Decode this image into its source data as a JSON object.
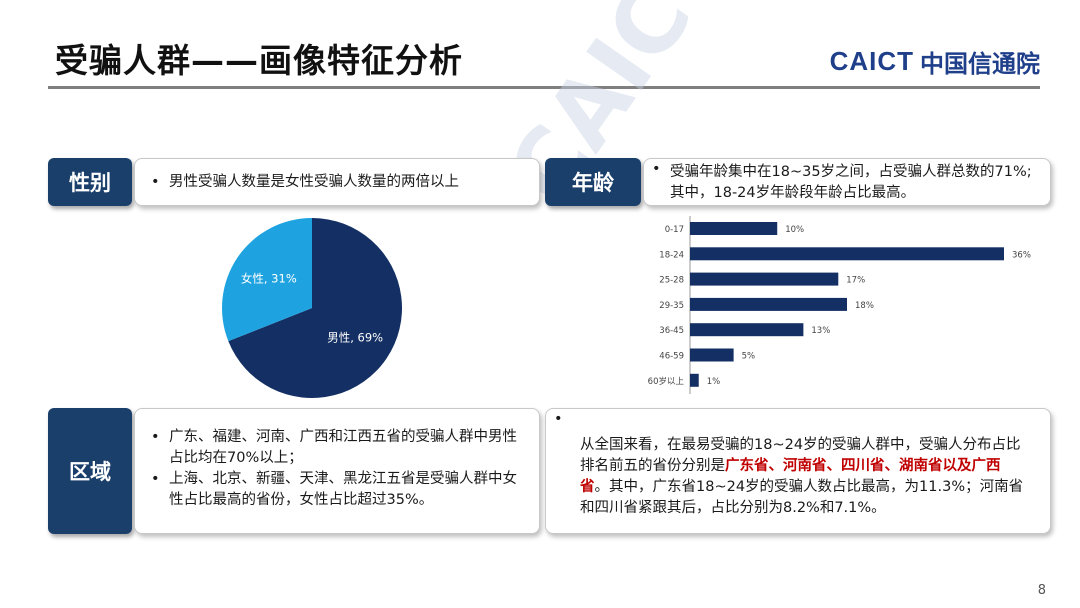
{
  "title": "受骗人群——画像特征分析",
  "logo": {
    "en_main": "CAICT",
    "cn": "中国信通院"
  },
  "watermark": "CAICT 中国信通院",
  "gender": {
    "tag": "性别",
    "text": "男性受骗人数量是女性受骗人数量的两倍以上"
  },
  "age": {
    "tag": "年龄",
    "text": "受骗年龄集中在18~35岁之间，占受骗人群总数的71%;其中，18-24岁年龄段年龄占比最高。"
  },
  "region": {
    "tag": "区域",
    "bullets": [
      "广东、福建、河南、广西和江西五省的受骗人群中男性占比均在70%以上；",
      "上海、北京、新疆、天津、黑龙江五省是受骗人群中女性占比最高的省份，女性占比超过35%。"
    ]
  },
  "national": {
    "pre": "从全国来看，在最易受骗的18~24岁的受骗人群中，受骗人分布占比排名前五的省份分别是",
    "highlight": "广东省、河南省、四川省、湖南省以及广西省",
    "post": "。其中，广东省18~24岁的受骗人数占比最高，为11.3%；河南省和四川省紧跟其后，占比分别为8.2%和7.1%。"
  },
  "page_number": "8",
  "chart_data": [
    {
      "type": "pie",
      "slices": [
        {
          "label": "男性",
          "value": 69,
          "display": "男性, 69%",
          "color": "#132f63"
        },
        {
          "label": "女性",
          "value": 31,
          "display": "女性, 31%",
          "color": "#1fa3e0"
        }
      ]
    },
    {
      "type": "bar",
      "orientation": "horizontal",
      "categories": [
        "0-17",
        "18-24",
        "25-28",
        "29-35",
        "36-45",
        "46-59",
        "60岁以上"
      ],
      "values": [
        10,
        36,
        17,
        18,
        13,
        5,
        1
      ],
      "labels": [
        "10%",
        "36%",
        "17%",
        "18%",
        "13%",
        "5%",
        "1%"
      ],
      "color": "#132f63"
    }
  ]
}
